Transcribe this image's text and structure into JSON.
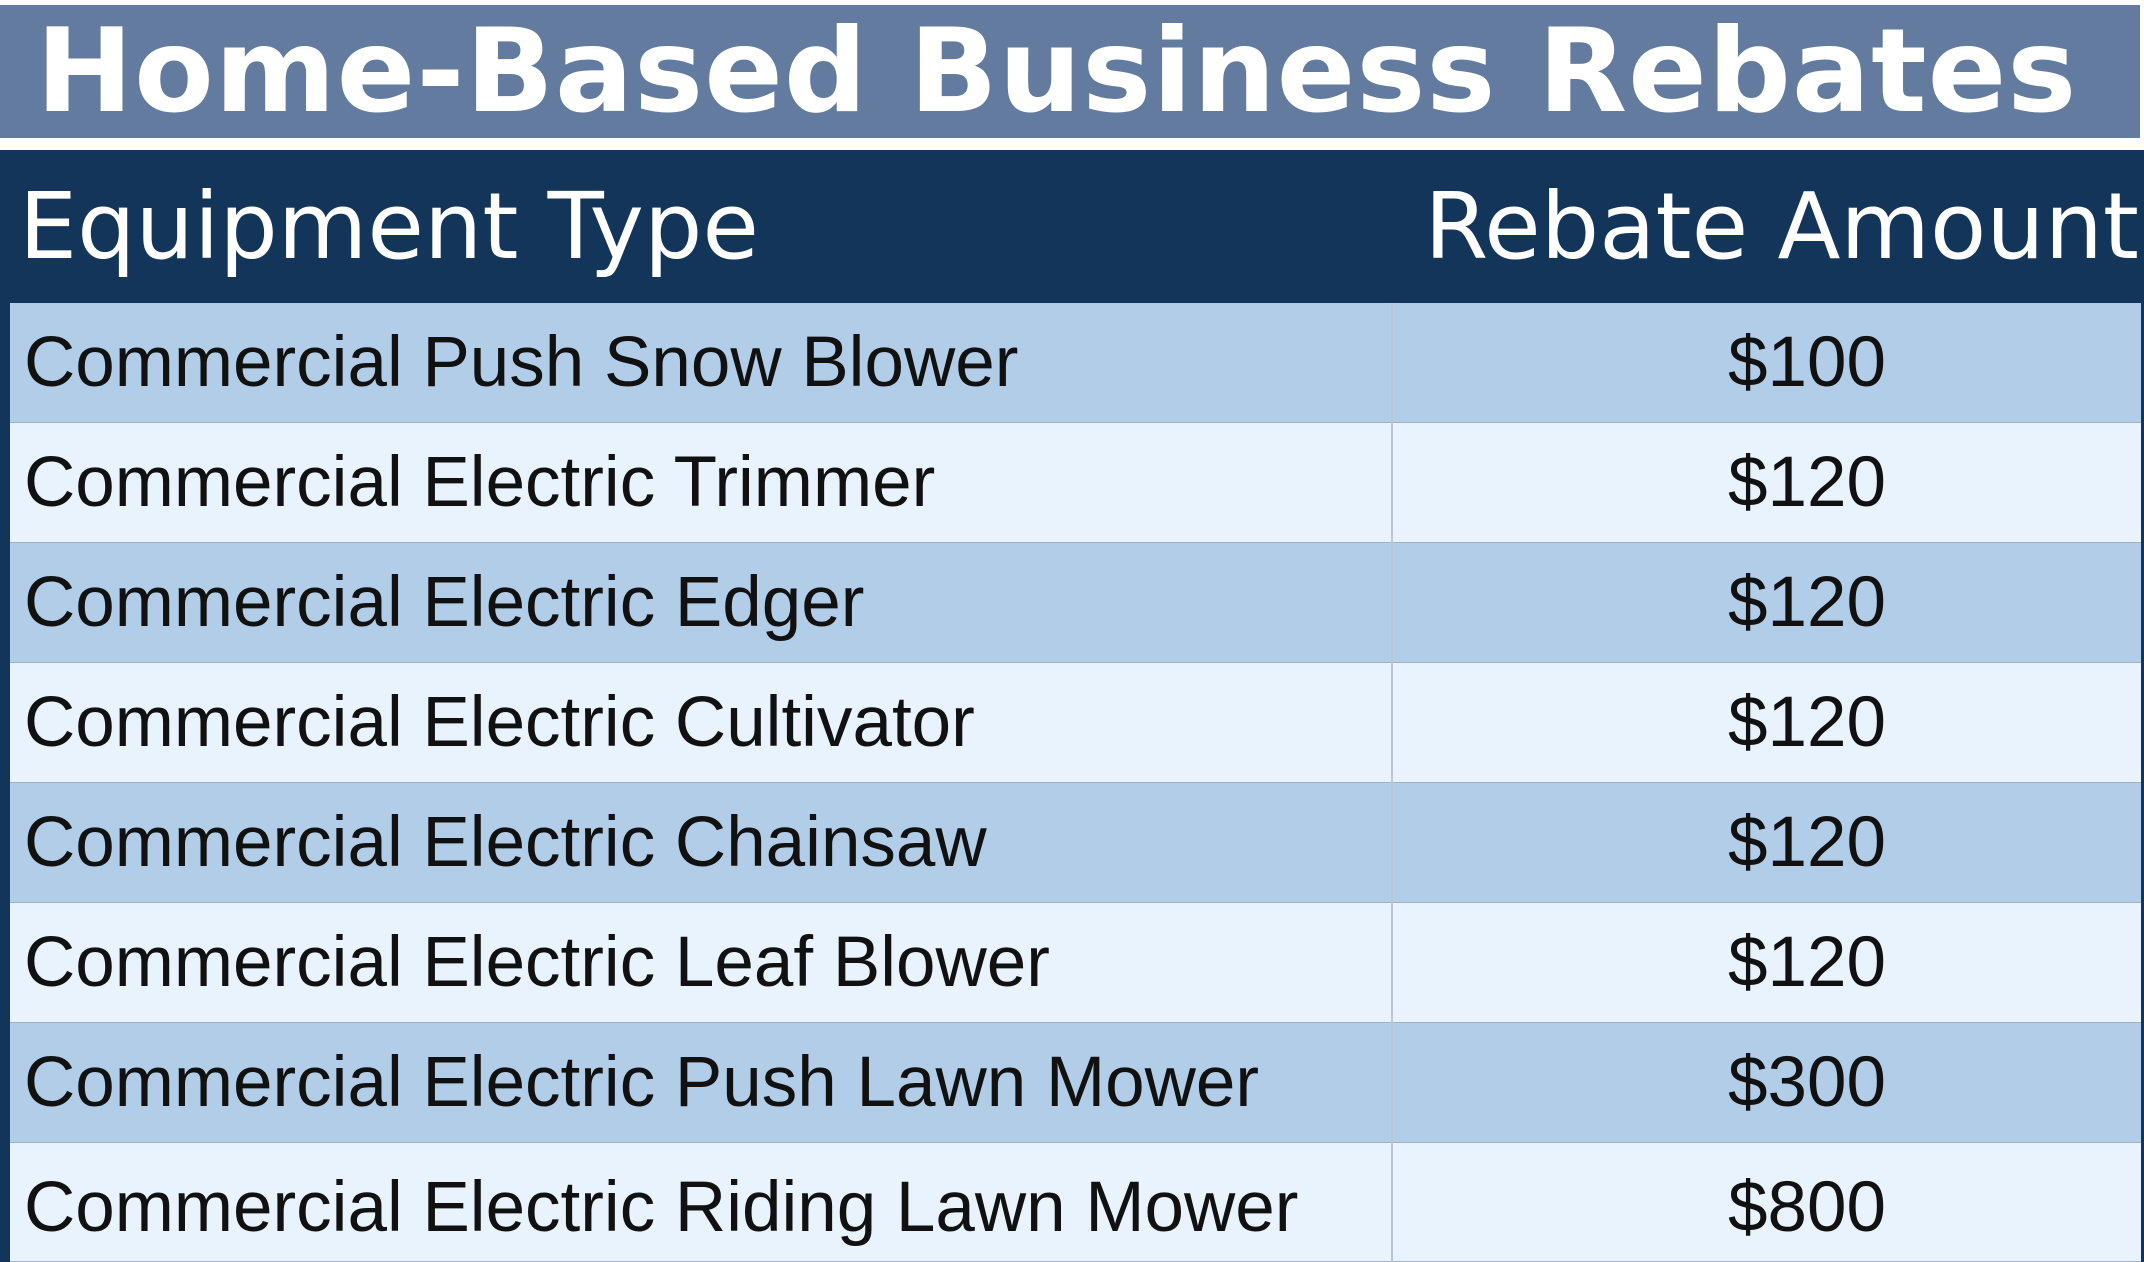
{
  "title": "Home-Based Business Rebates",
  "table": {
    "headers": [
      "Equipment Type",
      "Rebate Amount"
    ],
    "rows": [
      {
        "equipment": "Commercial Push Snow Blower",
        "rebate": "$100"
      },
      {
        "equipment": "Commercial Electric Trimmer",
        "rebate": "$120"
      },
      {
        "equipment": "Commercial Electric Edger",
        "rebate": "$120"
      },
      {
        "equipment": "Commercial Electric Cultivator",
        "rebate": "$120"
      },
      {
        "equipment": "Commercial Electric Chainsaw",
        "rebate": "$120"
      },
      {
        "equipment": "Commercial Electric Leaf Blower",
        "rebate": "$120"
      },
      {
        "equipment": "Commercial Electric Push Lawn Mower",
        "rebate": "$300"
      },
      {
        "equipment": "Commercial Electric Riding Lawn Mower",
        "rebate": "$800"
      }
    ]
  },
  "colors": {
    "title_bar": "#637b9f",
    "header_bg": "#14355a",
    "row_dark": "#b1cde8",
    "row_light": "#e8f3fd"
  }
}
